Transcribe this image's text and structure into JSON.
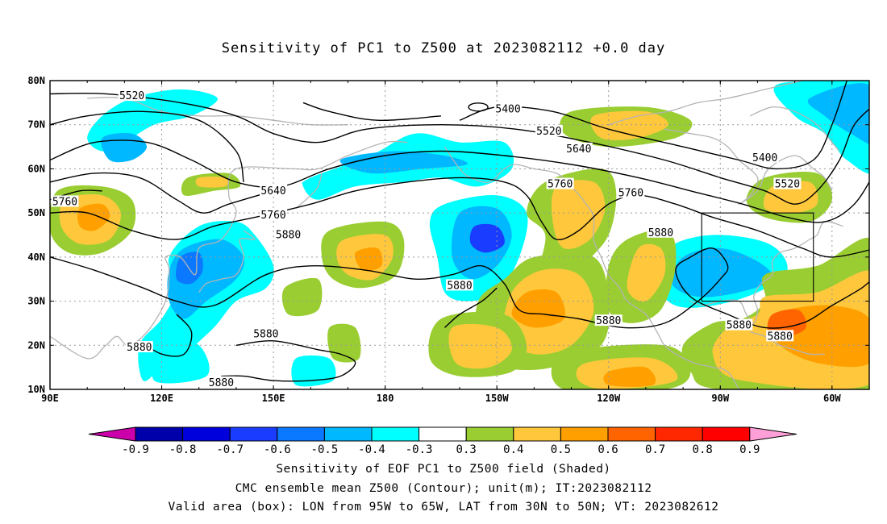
{
  "title": "Sensitivity of PC1 to Z500 at 2023082112 +0.0 day",
  "captions": [
    "Sensitivity of EOF PC1 to Z500 field (Shaded)",
    "CMC ensemble mean Z500 (Contour); unit(m); IT:2023082112",
    "Valid area (box): LON from 95W to 65W, LAT from 30N to 50N; VT: 2023082612"
  ],
  "map": {
    "lat_labels": [
      "80N",
      "70N",
      "60N",
      "50N",
      "40N",
      "30N",
      "20N",
      "10N"
    ],
    "lon_labels": [
      "90E",
      "120E",
      "150E",
      "180",
      "150W",
      "120W",
      "90W",
      "60W"
    ],
    "lon_range": [
      "90E",
      "50W"
    ],
    "lat_range": [
      "10N",
      "80N"
    ],
    "valid_box": {
      "lon": [
        "95W",
        "65W"
      ],
      "lat": [
        "30N",
        "50N"
      ]
    },
    "contour_levels": [
      "5400",
      "5520",
      "5640",
      "5760",
      "5880"
    ],
    "contour_labels": [
      {
        "text": "5520",
        "lon": 112,
        "lat": 76.5
      },
      {
        "text": "5400",
        "lon": -147,
        "lat": 73.5
      },
      {
        "text": "5520",
        "lon": -136,
        "lat": 68.5
      },
      {
        "text": "5640",
        "lon": -128,
        "lat": 64.5
      },
      {
        "text": "5400",
        "lon": -78,
        "lat": 62.5
      },
      {
        "text": "5520",
        "lon": -72,
        "lat": 56.5
      },
      {
        "text": "5760",
        "lon": -133,
        "lat": 56.5
      },
      {
        "text": "5760",
        "lon": -114,
        "lat": 54.5
      },
      {
        "text": "5760",
        "lon": 94,
        "lat": 52.5
      },
      {
        "text": "5640",
        "lon": 150,
        "lat": 55
      },
      {
        "text": "5760",
        "lon": 150,
        "lat": 49.5
      },
      {
        "text": "5880",
        "lon": 154,
        "lat": 45
      },
      {
        "text": "5880",
        "lon": -106,
        "lat": 45.5
      },
      {
        "text": "5880",
        "lon": -160,
        "lat": 33.5
      },
      {
        "text": "5880",
        "lon": -120,
        "lat": 25.5
      },
      {
        "text": "5880",
        "lon": -85,
        "lat": 24.5
      },
      {
        "text": "5880",
        "lon": -74,
        "lat": 22
      },
      {
        "text": "5880",
        "lon": 148,
        "lat": 22.5
      },
      {
        "text": "5880",
        "lon": 114,
        "lat": 19.5
      },
      {
        "text": "5880",
        "lon": 136,
        "lat": 11.5
      }
    ]
  },
  "colorbar": {
    "labels": [
      "-0.9",
      "-0.8",
      "-0.7",
      "-0.6",
      "-0.5",
      "-0.4",
      "-0.3",
      "0.3",
      "0.4",
      "0.5",
      "0.6",
      "0.7",
      "0.8",
      "0.9"
    ],
    "colors": [
      "#cc00aa",
      "#0000aa",
      "#0000dd",
      "#1a3cff",
      "#0a78ff",
      "#00b8ff",
      "#00ffff",
      "#ffffff",
      "#9acd32",
      "#ffc83c",
      "#ffa000",
      "#ff6400",
      "#ff2800",
      "#ff0000",
      "#ff9fd8"
    ]
  },
  "shading_colors": {
    "neg_strong": "#1a3cff",
    "neg_mid": "#0a78ff",
    "neg_weak": "#00b8ff",
    "neg_light": "#00ffff",
    "pos_light": "#9acd32",
    "pos_weak": "#ffc83c",
    "pos_mid": "#ffa000",
    "pos_strong": "#ff6400",
    "pos_max": "#ff2800"
  }
}
